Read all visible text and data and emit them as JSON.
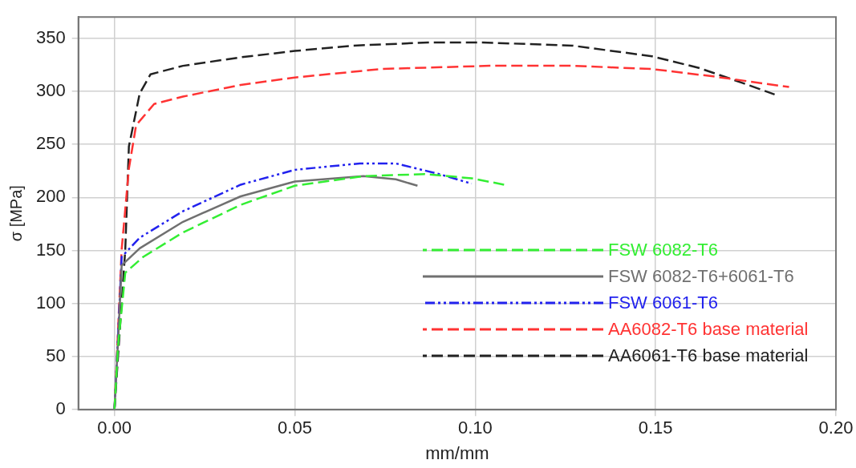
{
  "chart_data": {
    "type": "line",
    "xlabel": "mm/mm",
    "ylabel": "σ [MPa]",
    "xlim": [
      -0.01,
      0.2
    ],
    "xticks": [
      {
        "value": 0,
        "label": "0.00"
      },
      {
        "value": 0.05,
        "label": "0.05"
      },
      {
        "value": 0.1,
        "label": "0.10"
      },
      {
        "value": 0.15,
        "label": "0.15"
      },
      {
        "value": 0.2,
        "label": "0.20"
      }
    ],
    "ylim": [
      0,
      370
    ],
    "yticks": [
      0,
      50,
      100,
      150,
      200,
      250,
      300,
      350
    ],
    "grid": true,
    "legend": "bottom right",
    "marker": "none",
    "series": [
      {
        "name": "FSW 6082-T6",
        "color": "#33ee33",
        "line_style": "dashed",
        "x": [
          0,
          0.001,
          0.003,
          0.008,
          0.019,
          0.035,
          0.05,
          0.069,
          0.086,
          0.099,
          0.108
        ],
        "values": [
          0,
          60,
          129,
          144,
          167,
          193,
          211,
          220,
          222,
          218,
          212
        ]
      },
      {
        "name": "FSW 6082-T6+6061-T6",
        "color": "#707070",
        "line_style": "solid",
        "x": [
          0,
          0.001,
          0.002,
          0.007,
          0.019,
          0.035,
          0.05,
          0.069,
          0.078,
          0.084
        ],
        "values": [
          0,
          65,
          136,
          152,
          177,
          201,
          215,
          220,
          217,
          211
        ]
      },
      {
        "name": "FSW 6061-T6",
        "color": "#2222ee",
        "line_style": "dotted",
        "x": [
          0,
          0.001,
          0.002,
          0.007,
          0.019,
          0.035,
          0.05,
          0.068,
          0.078,
          0.09,
          0.099
        ],
        "values": [
          0,
          70,
          144,
          162,
          187,
          212,
          226,
          232,
          232,
          222,
          213
        ]
      },
      {
        "name": "AA6082-T6 base material",
        "color": "#ff3333",
        "line_style": "dashed",
        "x": [
          0,
          0.002,
          0.004,
          0.006,
          0.011,
          0.019,
          0.035,
          0.05,
          0.074,
          0.104,
          0.127,
          0.149,
          0.166,
          0.187
        ],
        "values": [
          0,
          151,
          227,
          268,
          288,
          295,
          306,
          313,
          321,
          324,
          324,
          321,
          314,
          304
        ]
      },
      {
        "name": "AA6061-T6 base material",
        "color": "#222222",
        "line_style": "dashed",
        "x": [
          0,
          0.003,
          0.004,
          0.007,
          0.01,
          0.019,
          0.035,
          0.05,
          0.066,
          0.087,
          0.102,
          0.127,
          0.149,
          0.162,
          0.174,
          0.183
        ],
        "values": [
          0,
          151,
          248,
          298,
          316,
          324,
          332,
          338,
          343,
          346,
          346,
          343,
          333,
          322,
          308,
          297
        ]
      }
    ]
  }
}
